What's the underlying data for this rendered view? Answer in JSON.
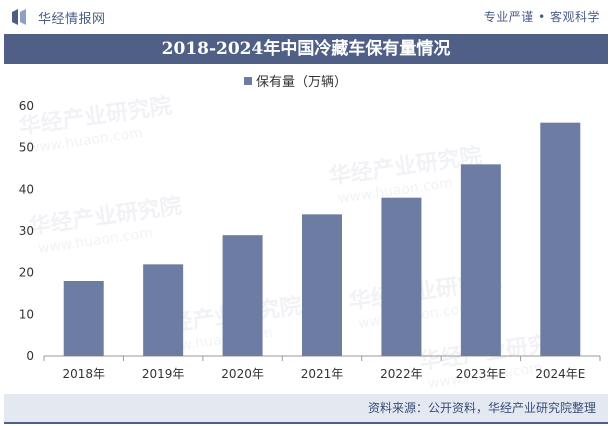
{
  "header": {
    "logo_text": "华经情报网",
    "slogan": "专业严谨 • 客观科学"
  },
  "title": "2018-2024年中国冷藏车保有量情况",
  "watermark": {
    "brand": "华经产业研究院",
    "url": "www.huaon.com"
  },
  "footer": {
    "source": "资料来源：公开资料，华经产业研究院整理"
  },
  "colors": {
    "bar": "#6c7ca3",
    "title_bg": "#4f5f86",
    "footer_bg": "#e3e8f1"
  },
  "chart_data": {
    "type": "bar",
    "categories": [
      "2018年",
      "2019年",
      "2020年",
      "2021年",
      "2022年",
      "2023年E",
      "2024年E"
    ],
    "series": [
      {
        "name": "保有量（万辆）",
        "values": [
          18,
          22,
          29,
          34,
          38,
          46,
          56
        ]
      }
    ],
    "ylim": [
      0,
      60
    ],
    "yticks": [
      0,
      10,
      20,
      30,
      40,
      50,
      60
    ],
    "legend_position": "top-center",
    "grid": false
  }
}
